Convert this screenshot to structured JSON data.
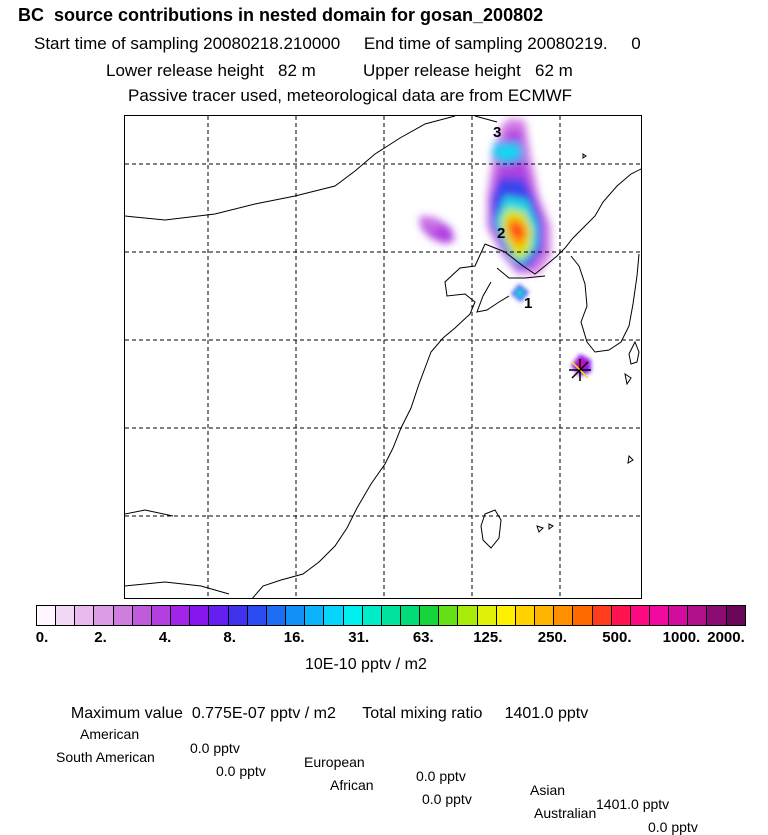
{
  "header": {
    "title": "BC  source contributions in nested domain for gosan_200802",
    "line2": "Start time of sampling 20080218.210000     End time of sampling 20080219.     0",
    "line3": "Lower release height   82 m          Upper release height   62 m",
    "line4": "Passive tracer used, meteorological data are from ECMWF"
  },
  "map": {
    "markers": [
      {
        "label": "3"
      },
      {
        "label": "2"
      },
      {
        "label": "1"
      }
    ],
    "station_symbol": "star-icon"
  },
  "colorbar": {
    "colors": [
      "#fff6ff",
      "#f3d8f6",
      "#e8baee",
      "#dc9ce6",
      "#d07ede",
      "#c25bdb",
      "#b43fe0",
      "#a224e8",
      "#8616f0",
      "#6420f0",
      "#4132ec",
      "#2a4cf0",
      "#1d6ef4",
      "#1290f8",
      "#0cb2fc",
      "#06d4fc",
      "#00f0f0",
      "#00ecc8",
      "#00e4a0",
      "#00dc78",
      "#18d43c",
      "#64e016",
      "#a8ec0c",
      "#e0f008",
      "#fff000",
      "#ffd200",
      "#ffb400",
      "#ff9000",
      "#ff6a00",
      "#ff3c1e",
      "#ff1450",
      "#ff0a82",
      "#f00aa0",
      "#d20c9e",
      "#b0108c",
      "#8c0c74",
      "#6a0658"
    ],
    "ticks": [
      "0.",
      "2.",
      "4.",
      "8.",
      "16.",
      "31.",
      "63.",
      "125.",
      "250.",
      "500.",
      "1000.",
      "2000."
    ],
    "units": "10E-10 pptv / m2"
  },
  "summary": {
    "max_label": "Maximum value  0.775E-07 pptv / m2",
    "total_label": "Total mixing ratio     1401.0 pptv",
    "rows": [
      [
        {
          "name": "American",
          "value": "0.0 pptv"
        },
        {
          "name": "European",
          "value": "0.0 pptv"
        },
        {
          "name": "Asian",
          "value": "1401.0 pptv"
        }
      ],
      [
        {
          "name": "South American",
          "value": "0.0 pptv"
        },
        {
          "name": "African",
          "value": "0.0 pptv"
        },
        {
          "name": "Australian",
          "value": "0.0 pptv"
        }
      ]
    ]
  }
}
